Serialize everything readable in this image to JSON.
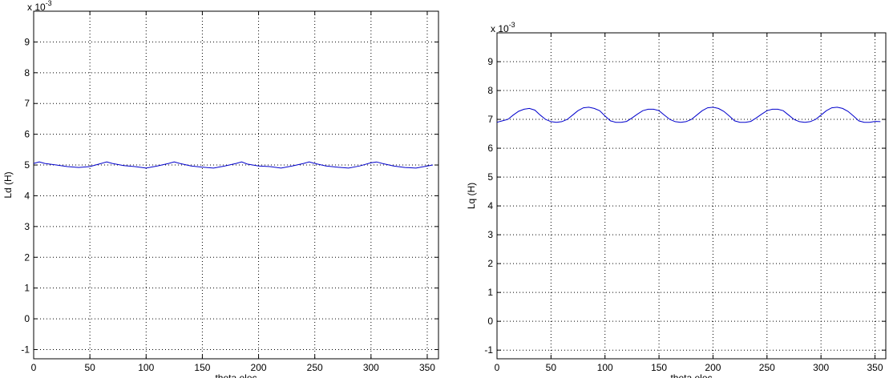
{
  "chart_data": [
    {
      "type": "line",
      "xlabel": "theta elec",
      "ylabel": "Ld (H)",
      "exponent_label": "x 10",
      "exponent_sup": "-3",
      "xlim": [
        0,
        360
      ],
      "ylim": [
        -1.3,
        10
      ],
      "xticks": [
        0,
        50,
        100,
        150,
        200,
        250,
        300,
        350
      ],
      "yticks": [
        -1,
        0,
        1,
        2,
        3,
        4,
        5,
        6,
        7,
        8,
        9
      ],
      "grid": true,
      "line_color": "#0000cc",
      "series": [
        {
          "x": [
            0,
            5,
            10,
            20,
            30,
            40,
            50,
            60,
            65,
            70,
            80,
            90,
            100,
            110,
            120,
            125,
            130,
            140,
            150,
            160,
            170,
            180,
            185,
            190,
            200,
            210,
            220,
            230,
            240,
            245,
            250,
            260,
            270,
            280,
            290,
            300,
            305,
            310,
            320,
            330,
            340,
            350,
            355
          ],
          "y": [
            5.05,
            5.1,
            5.05,
            5.0,
            4.95,
            4.92,
            4.95,
            5.05,
            5.1,
            5.05,
            4.98,
            4.95,
            4.9,
            4.97,
            5.05,
            5.1,
            5.05,
            4.97,
            4.93,
            4.9,
            4.97,
            5.05,
            5.1,
            5.03,
            4.97,
            4.95,
            4.9,
            4.97,
            5.05,
            5.1,
            5.05,
            4.97,
            4.93,
            4.9,
            4.97,
            5.07,
            5.1,
            5.05,
            4.97,
            4.92,
            4.9,
            4.97,
            5.0
          ]
        }
      ]
    },
    {
      "type": "line",
      "xlabel": "theta elec",
      "ylabel": "Lq (H)",
      "exponent_label": "x 10",
      "exponent_sup": "-3",
      "xlim": [
        0,
        360
      ],
      "ylim": [
        -1.3,
        10
      ],
      "xticks": [
        0,
        50,
        100,
        150,
        200,
        250,
        300,
        350
      ],
      "yticks": [
        -1,
        0,
        1,
        2,
        3,
        4,
        5,
        6,
        7,
        8,
        9
      ],
      "grid": true,
      "line_color": "#0000cc",
      "series": [
        {
          "x": [
            0,
            5,
            10,
            15,
            20,
            25,
            30,
            35,
            40,
            45,
            50,
            55,
            60,
            65,
            70,
            75,
            80,
            85,
            90,
            95,
            100,
            105,
            110,
            115,
            120,
            125,
            130,
            135,
            140,
            145,
            150,
            155,
            160,
            165,
            170,
            175,
            180,
            185,
            190,
            195,
            200,
            205,
            210,
            215,
            220,
            225,
            230,
            235,
            240,
            245,
            250,
            255,
            260,
            265,
            270,
            275,
            280,
            285,
            290,
            295,
            300,
            305,
            310,
            315,
            320,
            325,
            330,
            335,
            340,
            345,
            350,
            355
          ],
          "y": [
            6.9,
            6.95,
            7.0,
            7.15,
            7.28,
            7.35,
            7.38,
            7.32,
            7.15,
            7.0,
            6.92,
            6.9,
            6.92,
            7.0,
            7.15,
            7.3,
            7.4,
            7.42,
            7.38,
            7.3,
            7.12,
            6.95,
            6.9,
            6.9,
            6.93,
            7.05,
            7.18,
            7.3,
            7.35,
            7.35,
            7.3,
            7.15,
            7.0,
            6.92,
            6.9,
            6.92,
            7.0,
            7.15,
            7.3,
            7.4,
            7.42,
            7.38,
            7.28,
            7.12,
            6.95,
            6.9,
            6.9,
            6.93,
            7.05,
            7.18,
            7.3,
            7.35,
            7.35,
            7.3,
            7.15,
            7.0,
            6.92,
            6.9,
            6.92,
            7.0,
            7.15,
            7.3,
            7.4,
            7.42,
            7.38,
            7.28,
            7.12,
            6.95,
            6.9,
            6.9,
            6.93,
            6.92
          ]
        }
      ]
    }
  ]
}
